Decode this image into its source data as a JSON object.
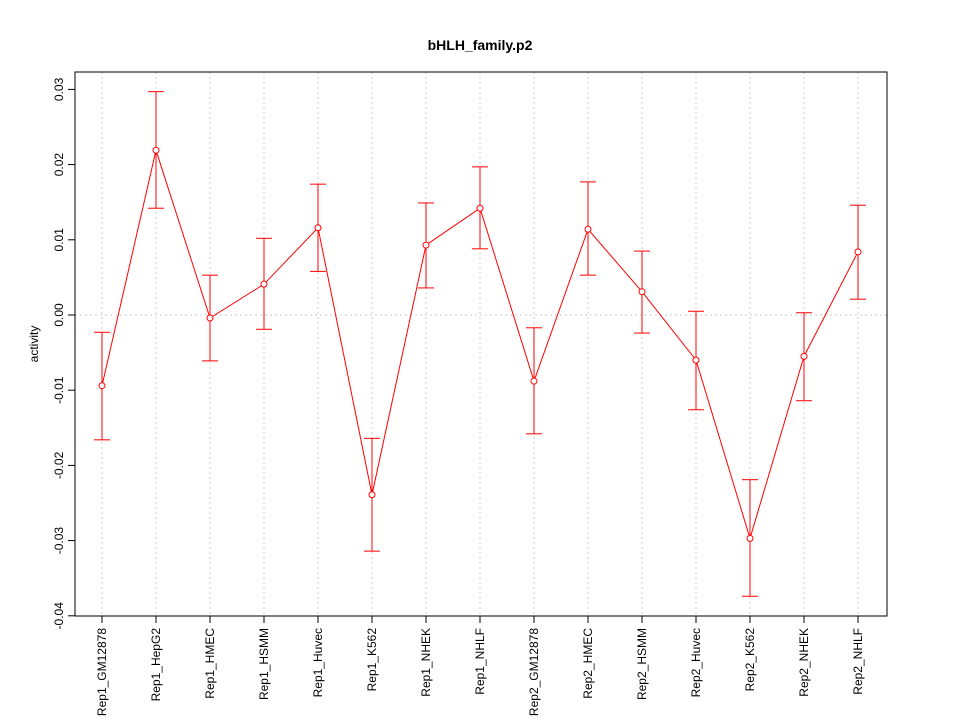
{
  "chart_data": {
    "type": "line",
    "title": "bHLH_family.p2",
    "xlabel": "",
    "ylabel": "activity",
    "ylim": [
      -0.04,
      0.03
    ],
    "yticks": [
      -0.04,
      -0.03,
      -0.02,
      -0.01,
      0.0,
      0.01,
      0.02,
      0.03
    ],
    "ytick_labels": [
      "-0.04",
      "-0.03",
      "-0.02",
      "-0.01",
      "0.00",
      "0.01",
      "0.02",
      "0.03"
    ],
    "grid": true,
    "color": "#ff0000",
    "categories": [
      "Rep1_GM12878",
      "Rep1_HepG2",
      "Rep1_HMEC",
      "Rep1_HSMM",
      "Rep1_Huvec",
      "Rep1_K562",
      "Rep1_NHEK",
      "Rep1_NHLF",
      "Rep2_GM12878",
      "Rep2_HMEC",
      "Rep2_HSMM",
      "Rep2_Huvec",
      "Rep2_K562",
      "Rep2_NHEK",
      "Rep2_NHLF"
    ],
    "series": [
      {
        "name": "activity",
        "values": [
          -0.0094,
          0.0219,
          -0.0004,
          0.0041,
          0.0116,
          -0.0239,
          0.0093,
          0.0142,
          -0.0088,
          0.0114,
          0.0031,
          -0.006,
          -0.0297,
          -0.0055,
          0.0084
        ],
        "upper": [
          -0.0023,
          0.0297,
          0.0053,
          0.0102,
          0.0174,
          -0.0164,
          0.0149,
          0.0197,
          -0.0017,
          0.0177,
          0.0085,
          0.0005,
          -0.0219,
          0.0003,
          0.0146
        ],
        "lower": [
          -0.0166,
          0.0142,
          -0.0061,
          -0.0019,
          0.0058,
          -0.0314,
          0.0036,
          0.0088,
          -0.0158,
          0.0053,
          -0.0024,
          -0.0126,
          -0.0374,
          -0.0114,
          0.0021
        ]
      }
    ]
  }
}
